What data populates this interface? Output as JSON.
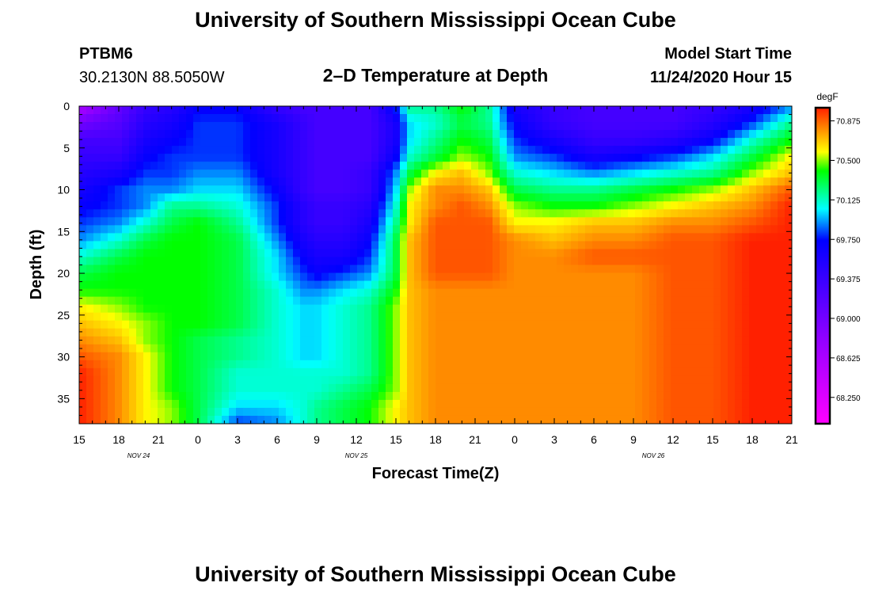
{
  "page": {
    "title_top": "University of Southern Mississippi Ocean Cube",
    "title_bottom": "University of Southern Mississippi Ocean Cube",
    "station_id": "PTBM6",
    "station_coords": "30.2130N 88.5050W",
    "plot_title": "2–D Temperature at Depth",
    "model_label": "Model Start Time",
    "model_time": "11/24/2020 Hour 15"
  },
  "chart_data": {
    "type": "heatmap",
    "title": "2–D Temperature at Depth",
    "xlabel": "Forecast Time(Z)",
    "ylabel": "Depth (ft)",
    "colorbar_unit": "degF",
    "x_range_hours": [
      0,
      54
    ],
    "x_tick_labels": [
      "15",
      "18",
      "21",
      "0",
      "3",
      "6",
      "9",
      "12",
      "15",
      "18",
      "21",
      "0",
      "3",
      "6",
      "9",
      "12",
      "15",
      "18",
      "21"
    ],
    "date_labels": [
      {
        "label": "NOV 24",
        "at_hour": 4.5
      },
      {
        "label": "NOV 25",
        "at_hour": 21
      },
      {
        "label": "NOV 26",
        "at_hour": 43.5
      }
    ],
    "ylim": [
      0,
      38
    ],
    "y_ticks": [
      0,
      5,
      10,
      15,
      20,
      25,
      30,
      35
    ],
    "colorbar_ticks": [
      "68.250",
      "68.625",
      "69.000",
      "69.375",
      "69.750",
      "70.125",
      "70.500",
      "70.875"
    ],
    "colorbar_range": [
      68.0,
      71.0
    ],
    "colors": {
      "magenta": "#ff00ff",
      "purple": "#9a00ff",
      "blue": "#0000ff",
      "cyan": "#00ffff",
      "green": "#00ff00",
      "yellow": "#ffff00",
      "orange": "#ffa000",
      "red": "#ff2000"
    },
    "depths": [
      0,
      2,
      4,
      6,
      8,
      10,
      12,
      14,
      16,
      18,
      20,
      22,
      24,
      26,
      28,
      30,
      32,
      34,
      36,
      38
    ],
    "hours": [
      0,
      3,
      5,
      7,
      9,
      12,
      15,
      17,
      18,
      20,
      22,
      24,
      25,
      27,
      29,
      31,
      33,
      36,
      39,
      42,
      45,
      48,
      51,
      54
    ],
    "grid_rows": [
      [
        68.6,
        69.1,
        69.4,
        69.5,
        69.7,
        69.7,
        69.4,
        69.3,
        69.3,
        69.3,
        69.3,
        69.8,
        70.2,
        70.2,
        70.4,
        70.2,
        69.6,
        69.4,
        69.3,
        69.3,
        69.3,
        69.4,
        69.6,
        69.9
      ],
      [
        69.0,
        69.2,
        69.5,
        69.6,
        69.8,
        69.8,
        69.6,
        69.4,
        69.3,
        69.3,
        69.3,
        69.6,
        70.0,
        70.1,
        70.3,
        70.2,
        69.7,
        69.4,
        69.3,
        69.3,
        69.3,
        69.5,
        69.8,
        70.2
      ],
      [
        69.3,
        69.3,
        69.6,
        69.7,
        69.8,
        69.8,
        69.6,
        69.4,
        69.3,
        69.3,
        69.3,
        69.6,
        70.0,
        70.2,
        70.4,
        70.3,
        69.8,
        69.6,
        69.4,
        69.4,
        69.5,
        69.7,
        70.1,
        70.4
      ],
      [
        69.4,
        69.4,
        69.7,
        69.8,
        69.8,
        69.8,
        69.6,
        69.4,
        69.3,
        69.3,
        69.3,
        69.7,
        70.1,
        70.3,
        70.5,
        70.4,
        69.9,
        69.8,
        69.6,
        69.7,
        69.8,
        70.0,
        70.3,
        70.6
      ],
      [
        69.5,
        69.6,
        69.8,
        69.8,
        69.9,
        69.9,
        69.6,
        69.4,
        69.3,
        69.3,
        69.4,
        69.9,
        70.3,
        70.6,
        70.7,
        70.5,
        70.1,
        70.0,
        69.9,
        70.0,
        70.1,
        70.2,
        70.5,
        70.7
      ],
      [
        69.6,
        69.8,
        69.9,
        69.9,
        70.0,
        70.0,
        69.7,
        69.4,
        69.3,
        69.3,
        69.4,
        70.0,
        70.5,
        70.8,
        70.8,
        70.7,
        70.3,
        70.2,
        70.2,
        70.3,
        70.4,
        70.5,
        70.7,
        70.9
      ],
      [
        69.7,
        69.8,
        69.9,
        70.2,
        70.2,
        70.1,
        69.8,
        69.5,
        69.4,
        69.4,
        69.5,
        70.1,
        70.6,
        70.8,
        70.9,
        70.8,
        70.5,
        70.4,
        70.4,
        70.5,
        70.6,
        70.7,
        70.8,
        71.0
      ],
      [
        69.8,
        69.9,
        70.1,
        70.3,
        70.4,
        70.2,
        69.8,
        69.5,
        69.4,
        69.4,
        69.6,
        70.2,
        70.6,
        70.9,
        70.9,
        70.9,
        70.6,
        70.6,
        70.7,
        70.7,
        70.8,
        70.8,
        70.9,
        71.0
      ],
      [
        69.9,
        70.1,
        70.3,
        70.4,
        70.4,
        70.3,
        69.9,
        69.6,
        69.5,
        69.5,
        69.7,
        70.3,
        70.7,
        70.9,
        70.9,
        70.9,
        70.8,
        70.7,
        70.8,
        70.8,
        70.9,
        70.9,
        71.0,
        71.0
      ],
      [
        70.1,
        70.3,
        70.4,
        70.4,
        70.4,
        70.3,
        70.0,
        69.7,
        69.6,
        69.6,
        69.8,
        70.3,
        70.7,
        70.9,
        70.9,
        70.9,
        70.8,
        70.8,
        70.9,
        70.9,
        70.9,
        70.9,
        71.0,
        71.0
      ],
      [
        70.3,
        70.4,
        70.4,
        70.4,
        70.4,
        70.3,
        70.0,
        69.8,
        69.7,
        69.8,
        69.9,
        70.3,
        70.7,
        70.9,
        70.9,
        70.9,
        70.8,
        70.8,
        70.8,
        70.8,
        70.9,
        70.9,
        71.0,
        71.0
      ],
      [
        70.4,
        70.4,
        70.4,
        70.4,
        70.4,
        70.3,
        70.1,
        69.9,
        69.9,
        70.0,
        70.1,
        70.4,
        70.7,
        70.8,
        70.8,
        70.8,
        70.8,
        70.8,
        70.8,
        70.8,
        70.9,
        70.9,
        71.0,
        71.0
      ],
      [
        70.6,
        70.5,
        70.4,
        70.4,
        70.4,
        70.3,
        70.1,
        70.0,
        70.0,
        70.1,
        70.2,
        70.5,
        70.7,
        70.8,
        70.8,
        70.8,
        70.8,
        70.8,
        70.8,
        70.8,
        70.9,
        70.9,
        71.0,
        71.0
      ],
      [
        70.7,
        70.6,
        70.5,
        70.4,
        70.4,
        70.3,
        70.1,
        70.0,
        70.0,
        70.1,
        70.2,
        70.5,
        70.7,
        70.8,
        70.8,
        70.8,
        70.8,
        70.8,
        70.8,
        70.8,
        70.9,
        70.9,
        71.0,
        71.0
      ],
      [
        70.8,
        70.7,
        70.5,
        70.4,
        70.3,
        70.2,
        70.1,
        70.0,
        70.0,
        70.1,
        70.2,
        70.5,
        70.7,
        70.8,
        70.8,
        70.8,
        70.8,
        70.8,
        70.8,
        70.8,
        70.9,
        70.9,
        71.0,
        71.0
      ],
      [
        70.9,
        70.8,
        70.6,
        70.4,
        70.3,
        70.2,
        70.1,
        70.0,
        70.0,
        70.1,
        70.2,
        70.5,
        70.7,
        70.8,
        70.8,
        70.8,
        70.8,
        70.8,
        70.8,
        70.8,
        70.9,
        70.9,
        71.0,
        71.0
      ],
      [
        71.0,
        70.8,
        70.6,
        70.4,
        70.3,
        70.1,
        70.1,
        70.1,
        70.1,
        70.1,
        70.2,
        70.5,
        70.7,
        70.8,
        70.8,
        70.8,
        70.8,
        70.8,
        70.8,
        70.8,
        70.9,
        70.9,
        71.0,
        71.0
      ],
      [
        71.0,
        70.8,
        70.6,
        70.4,
        70.3,
        70.1,
        70.1,
        70.1,
        70.1,
        70.2,
        70.3,
        70.5,
        70.7,
        70.8,
        70.8,
        70.8,
        70.8,
        70.8,
        70.8,
        70.8,
        70.9,
        70.9,
        71.0,
        71.0
      ],
      [
        71.0,
        70.8,
        70.6,
        70.5,
        70.3,
        70.0,
        70.0,
        70.1,
        70.2,
        70.3,
        70.4,
        70.6,
        70.7,
        70.8,
        70.8,
        70.8,
        70.8,
        70.8,
        70.8,
        70.8,
        70.9,
        70.9,
        71.0,
        71.0
      ],
      [
        71.0,
        70.8,
        70.6,
        70.5,
        70.3,
        69.8,
        69.9,
        70.1,
        70.2,
        70.3,
        70.4,
        70.6,
        70.7,
        70.8,
        70.8,
        70.8,
        70.8,
        70.8,
        70.8,
        70.8,
        70.9,
        70.9,
        71.0,
        71.0
      ]
    ]
  }
}
